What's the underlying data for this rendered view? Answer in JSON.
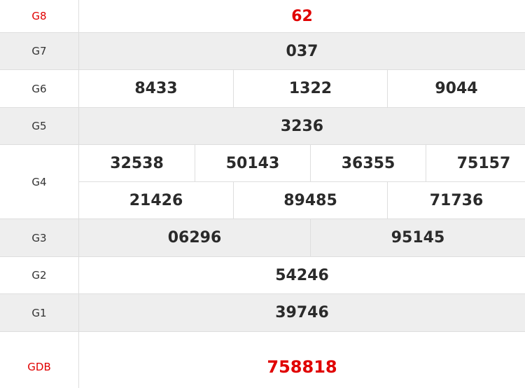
{
  "colors": {
    "highlight": "#e00000",
    "alt_row": "#eeeeee",
    "text": "#2a2a2a"
  },
  "prizes": [
    {
      "label": "G8",
      "numbers": [
        "62"
      ]
    },
    {
      "label": "G7",
      "numbers": [
        "037"
      ]
    },
    {
      "label": "G6",
      "numbers": [
        "8433",
        "1322",
        "9044"
      ]
    },
    {
      "label": "G5",
      "numbers": [
        "3236"
      ]
    },
    {
      "label": "G4",
      "numbers": [
        "32538",
        "50143",
        "36355",
        "75157",
        "21426",
        "89485",
        "71736"
      ]
    },
    {
      "label": "G3",
      "numbers": [
        "06296",
        "95145"
      ]
    },
    {
      "label": "G2",
      "numbers": [
        "54246"
      ]
    },
    {
      "label": "G1",
      "numbers": [
        "39746"
      ]
    },
    {
      "label": "GDB",
      "numbers": [
        "758818"
      ]
    }
  ]
}
